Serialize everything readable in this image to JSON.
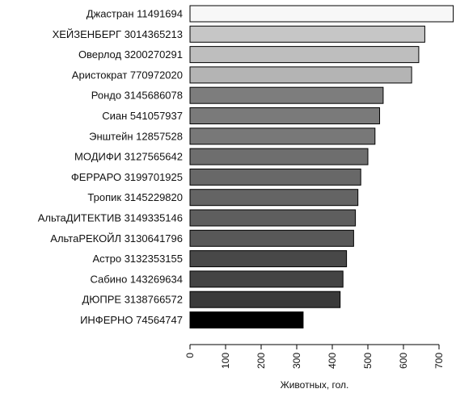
{
  "chart_data": {
    "type": "bar",
    "orientation": "horizontal",
    "categories": [
      "Джастран 11491694",
      "ХЕЙЗЕНБЕРГ 3014365213",
      "Оверлод 3200270291",
      "Аристократ 770972020",
      "Рондо 3145686078",
      "Сиан 541057937",
      "Энштейн 12857528",
      "МОДИФИ 3127565642",
      "ФЕРРАРО 3199701925",
      "Тропик 3145229820",
      "АльтаДИТЕКТИВ 3149335146",
      "АльтаРЕКОЙЛ 3130641796",
      "Астро 3132353155",
      "Сабино 143269634",
      "ДЮПРЕ 3138766572",
      "ИНФЕРНО 74564747"
    ],
    "values": [
      740,
      660,
      643,
      623,
      543,
      533,
      520,
      500,
      480,
      472,
      465,
      460,
      440,
      430,
      422,
      318
    ],
    "colors": [
      "#f7f7f7",
      "#c6c6c6",
      "#bebebe",
      "#b4b4b4",
      "#7d7d7d",
      "#7a7a7a",
      "#787878",
      "#6e6e6e",
      "#686868",
      "#646464",
      "#5e5e5e",
      "#585858",
      "#484848",
      "#434343",
      "#3a3a3a",
      "#000000"
    ],
    "xlabel": "Животных, гол.",
    "ylabel": "",
    "title": "",
    "xlim": [
      0,
      740
    ],
    "xticks": [
      "0",
      "100",
      "200",
      "300",
      "400",
      "500",
      "600",
      "700"
    ],
    "xtick_values": [
      0,
      100,
      200,
      300,
      400,
      500,
      600,
      700
    ],
    "grid": false,
    "legend": "none"
  }
}
